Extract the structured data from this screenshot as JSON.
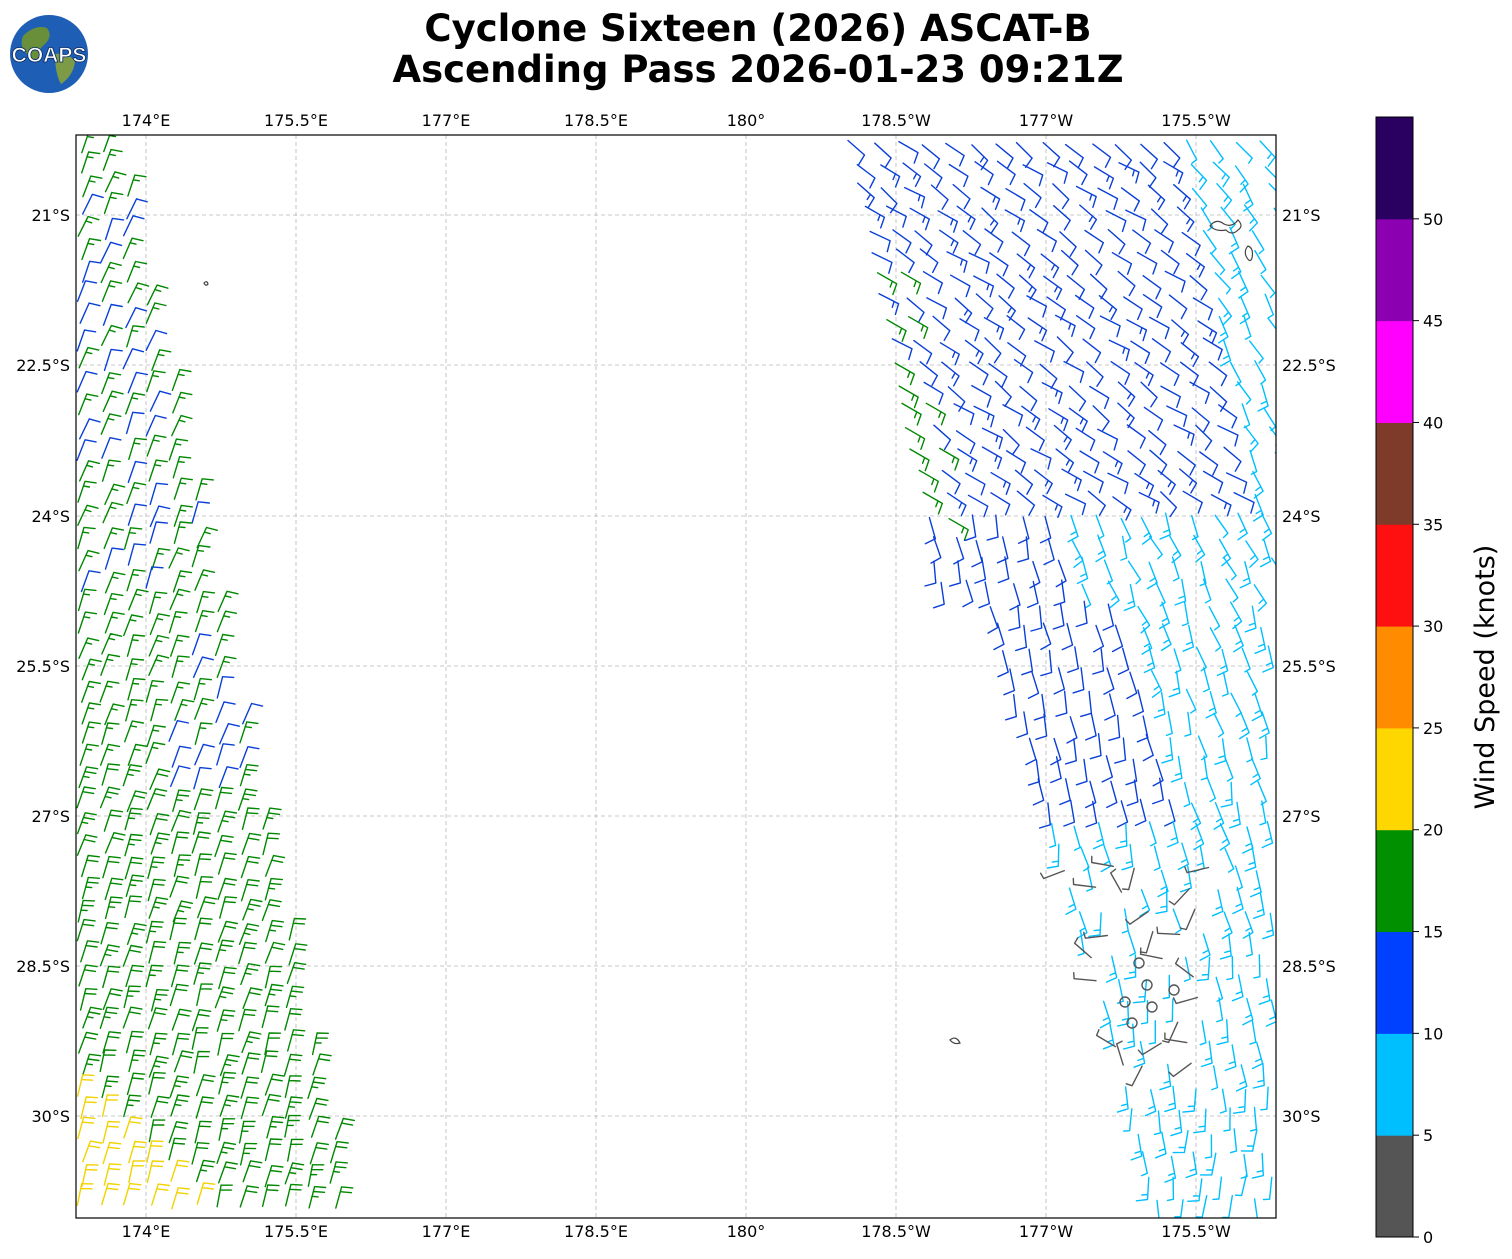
{
  "title": {
    "line1": "Cyclone Sixteen (2026) ASCAT-B",
    "line2": "Ascending Pass 2026-01-23 09:21Z"
  },
  "logo": {
    "text": "COAPS",
    "icon": "globe-logo"
  },
  "axes": {
    "lon_labels": [
      "174°E",
      "175.5°E",
      "177°E",
      "178.5°E",
      "180°",
      "178.5°W",
      "177°W",
      "175.5°W"
    ],
    "lat_labels": [
      "21°S",
      "22.5°S",
      "24°S",
      "25.5°S",
      "27°S",
      "28.5°S",
      "30°S"
    ]
  },
  "colorbar": {
    "label": "Wind Speed (knots)",
    "ticks": [
      "0",
      "5",
      "10",
      "15",
      "20",
      "25",
      "30",
      "35",
      "40",
      "45",
      "50"
    ],
    "colors": [
      "#555555",
      "#00bfff",
      "#0040ff",
      "#009000",
      "#ffd700",
      "#ff8c00",
      "#ff1010",
      "#7f3b2a",
      "#ff00ff",
      "#8b00b0",
      "#2a0060"
    ]
  },
  "swaths": [
    {
      "name": "west-swath",
      "dominant": [
        "green",
        "blue",
        "yellow"
      ]
    },
    {
      "name": "east-swath",
      "dominant": [
        "blue",
        "cyan",
        "gray"
      ]
    }
  ]
}
